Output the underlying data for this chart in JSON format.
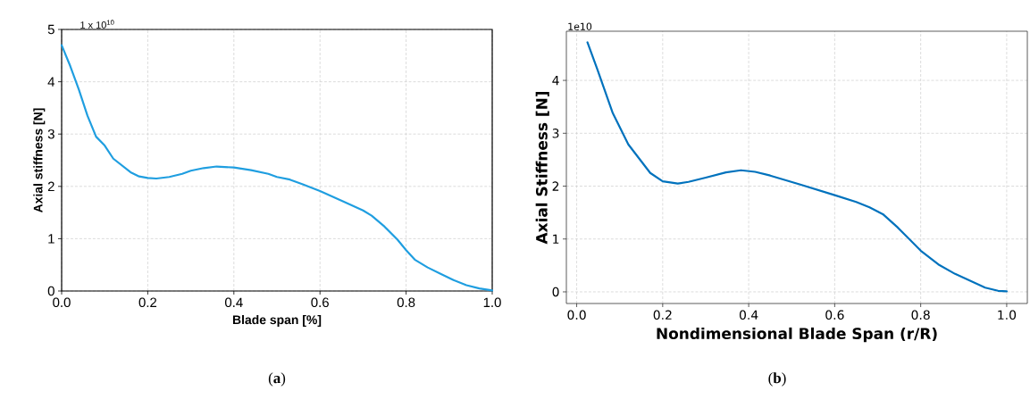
{
  "chart_data": [
    {
      "type": "line",
      "xlabel": "Blade span [%]",
      "ylabel": "Axial stiffness [N]",
      "annotations": [
        "1 x 10$^{10}$",
        "(**a**)"
      ],
      "xlim": [
        0,
        1
      ],
      "ylim": [
        0,
        5
      ],
      "xticks": [
        {
          "value": 0,
          "label": "0.0"
        },
        {
          "value": 0.2,
          "label": "0.2"
        },
        {
          "value": 0.4,
          "label": "0.4"
        },
        {
          "value": 0.6,
          "label": "0.6"
        },
        {
          "value": 0.8,
          "label": "0.8"
        },
        {
          "value": 1,
          "label": "1.0"
        }
      ],
      "yticks": [
        0,
        1,
        2,
        3,
        4,
        5
      ],
      "grid": true,
      "marker": "none",
      "line_style": "solid",
      "series": [
        {
          "color": "#1f9ee0",
          "x": [
            0,
            0.02,
            0.04,
            0.06,
            0.08,
            0.1,
            0.12,
            0.14,
            0.16,
            0.18,
            0.2,
            0.22,
            0.25,
            0.28,
            0.3,
            0.33,
            0.36,
            0.4,
            0.44,
            0.48,
            0.5,
            0.53,
            0.56,
            0.6,
            0.63,
            0.66,
            0.7,
            0.72,
            0.75,
            0.78,
            0.8,
            0.82,
            0.85,
            0.88,
            0.91,
            0.94,
            0.97,
            1.0
          ],
          "values": [
            4.7,
            4.3,
            3.85,
            3.35,
            2.95,
            2.78,
            2.53,
            2.4,
            2.27,
            2.19,
            2.16,
            2.15,
            2.18,
            2.24,
            2.3,
            2.35,
            2.38,
            2.36,
            2.31,
            2.24,
            2.18,
            2.13,
            2.04,
            1.91,
            1.8,
            1.69,
            1.54,
            1.44,
            1.23,
            0.98,
            0.78,
            0.6,
            0.45,
            0.33,
            0.21,
            0.11,
            0.05,
            0.01
          ]
        }
      ]
    },
    {
      "type": "line",
      "xlabel": "Nondimensional Blade Span (r/R)",
      "ylabel": "Axial Stiffness [N]",
      "annotations": [
        "1e10",
        "(**b**)"
      ],
      "xlim": [
        -0.024,
        1.048
      ],
      "ylim": [
        -0.22,
        4.93
      ],
      "xticks": [
        {
          "value": 0,
          "label": "0.0"
        },
        {
          "value": 0.2,
          "label": "0.2"
        },
        {
          "value": 0.4,
          "label": "0.4"
        },
        {
          "value": 0.6,
          "label": "0.6"
        },
        {
          "value": 0.8,
          "label": "0.8"
        },
        {
          "value": 1,
          "label": "1.0"
        }
      ],
      "yticks": [
        0,
        1,
        2,
        3,
        4
      ],
      "grid": true,
      "marker": "none",
      "line_style": "solid",
      "series": [
        {
          "color": "#0072bd",
          "x": [
            0.025,
            0.048,
            0.084,
            0.12,
            0.171,
            0.2,
            0.235,
            0.26,
            0.3,
            0.347,
            0.382,
            0.415,
            0.45,
            0.52,
            0.6,
            0.65,
            0.681,
            0.712,
            0.745,
            0.8,
            0.841,
            0.88,
            0.95,
            0.98,
            1.0
          ],
          "values": [
            4.72,
            4.21,
            3.38,
            2.79,
            2.25,
            2.09,
            2.05,
            2.08,
            2.16,
            2.26,
            2.3,
            2.27,
            2.2,
            2.03,
            1.83,
            1.7,
            1.6,
            1.47,
            1.23,
            0.78,
            0.52,
            0.34,
            0.08,
            0.02,
            0.01
          ]
        }
      ]
    }
  ]
}
